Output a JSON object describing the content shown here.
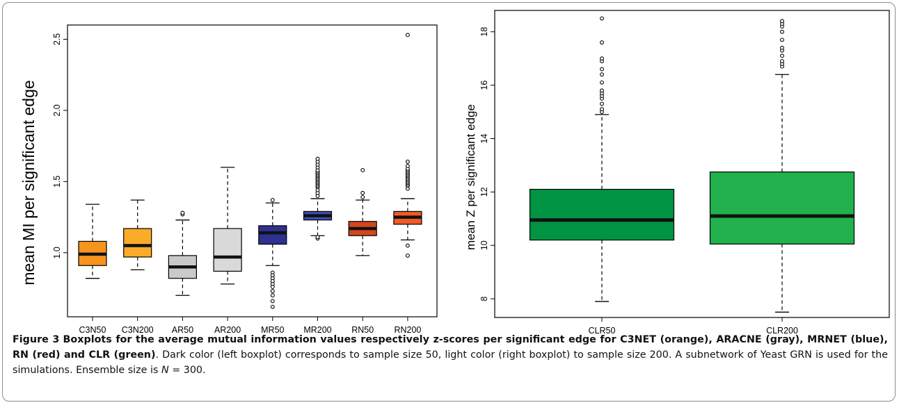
{
  "figure": {
    "caption": {
      "label": "Figure 3",
      "title": "Boxplots for the average mutual information values respectively z-scores per significant edge for C3NET (orange), ARACNE (gray), MRNET (blue), RN (red) and CLR (green)",
      "body_1": ". Dark color (left boxplot) corresponds to sample size 50, light color (right boxplot) to sample size 200. A subnetwork of Yeast GRN is used for the simulations. Ensemble size is ",
      "var_symbol": "N",
      "body_2": " = 300."
    }
  },
  "chart_data": [
    {
      "type": "box",
      "title": "",
      "xlabel": "",
      "ylabel": "mean MI per significant edge",
      "ylim": [
        0.55,
        2.6
      ],
      "yticks": [
        1.0,
        1.5,
        2.0,
        2.5
      ],
      "ytick_labels": [
        "1.0",
        "1.5",
        "2.0",
        "2.5"
      ],
      "grid": false,
      "boxes": [
        {
          "label": "C3N50",
          "color": "#f7941d",
          "whisker_low": 0.82,
          "q1": 0.91,
          "median": 0.99,
          "q3": 1.08,
          "whisker_high": 1.34,
          "outliers": []
        },
        {
          "label": "C3N200",
          "color": "#fbab2a",
          "whisker_low": 0.88,
          "q1": 0.97,
          "median": 1.05,
          "q3": 1.17,
          "whisker_high": 1.37,
          "outliers": []
        },
        {
          "label": "AR50",
          "color": "#c9c9c9",
          "whisker_low": 0.7,
          "q1": 0.82,
          "median": 0.9,
          "q3": 0.98,
          "whisker_high": 1.23,
          "outliers": [
            1.27,
            1.28
          ]
        },
        {
          "label": "AR200",
          "color": "#d9d9d9",
          "whisker_low": 0.78,
          "q1": 0.87,
          "median": 0.97,
          "q3": 1.17,
          "whisker_high": 1.6,
          "outliers": []
        },
        {
          "label": "MR50",
          "color": "#2e3192",
          "whisker_low": 0.91,
          "q1": 1.06,
          "median": 1.14,
          "q3": 1.19,
          "whisker_high": 1.35,
          "outliers": [
            1.37,
            0.86,
            0.84,
            0.82,
            0.8,
            0.78,
            0.76,
            0.73,
            0.7,
            0.66,
            0.62
          ]
        },
        {
          "label": "MR200",
          "color": "#3c4fb4",
          "whisker_low": 1.12,
          "q1": 1.23,
          "median": 1.26,
          "q3": 1.29,
          "whisker_high": 1.38,
          "outliers": [
            1.1,
            1.11,
            1.4,
            1.42,
            1.44,
            1.46,
            1.47,
            1.48,
            1.49,
            1.5,
            1.51,
            1.52,
            1.53,
            1.54,
            1.55,
            1.56,
            1.57,
            1.58,
            1.6,
            1.62,
            1.64,
            1.66
          ]
        },
        {
          "label": "RN50",
          "color": "#d4461e",
          "whisker_low": 0.98,
          "q1": 1.12,
          "median": 1.17,
          "q3": 1.22,
          "whisker_high": 1.37,
          "outliers": [
            1.39,
            1.42,
            1.58
          ]
        },
        {
          "label": "RN200",
          "color": "#f15a24",
          "whisker_low": 1.09,
          "q1": 1.2,
          "median": 1.25,
          "q3": 1.29,
          "whisker_high": 1.38,
          "outliers": [
            0.98,
            1.05,
            1.45,
            1.47,
            1.48,
            1.49,
            1.5,
            1.51,
            1.52,
            1.53,
            1.54,
            1.55,
            1.56,
            1.57,
            1.58,
            1.59,
            1.61,
            1.64,
            2.53
          ]
        }
      ]
    },
    {
      "type": "box",
      "title": "",
      "xlabel": "",
      "ylabel": "mean Z per significant edge",
      "ylim": [
        7.3,
        18.8
      ],
      "yticks": [
        8,
        10,
        12,
        14,
        16,
        18
      ],
      "ytick_labels": [
        "8",
        "10",
        "12",
        "14",
        "16",
        "18"
      ],
      "grid": false,
      "boxes": [
        {
          "label": "CLR50",
          "color": "#009444",
          "whisker_low": 7.9,
          "q1": 10.2,
          "median": 10.95,
          "q3": 12.1,
          "whisker_high": 14.9,
          "outliers": [
            15.0,
            15.1,
            15.3,
            15.5,
            15.6,
            15.7,
            15.8,
            16.1,
            16.4,
            16.6,
            16.9,
            17.0,
            17.6,
            18.5
          ]
        },
        {
          "label": "CLR200",
          "color": "#22b14c",
          "whisker_low": 7.5,
          "q1": 10.05,
          "median": 11.1,
          "q3": 12.75,
          "whisker_high": 16.4,
          "outliers": [
            16.7,
            16.8,
            16.9,
            17.1,
            17.3,
            17.4,
            17.7,
            18.0,
            18.2,
            18.3,
            18.4
          ]
        }
      ]
    }
  ]
}
